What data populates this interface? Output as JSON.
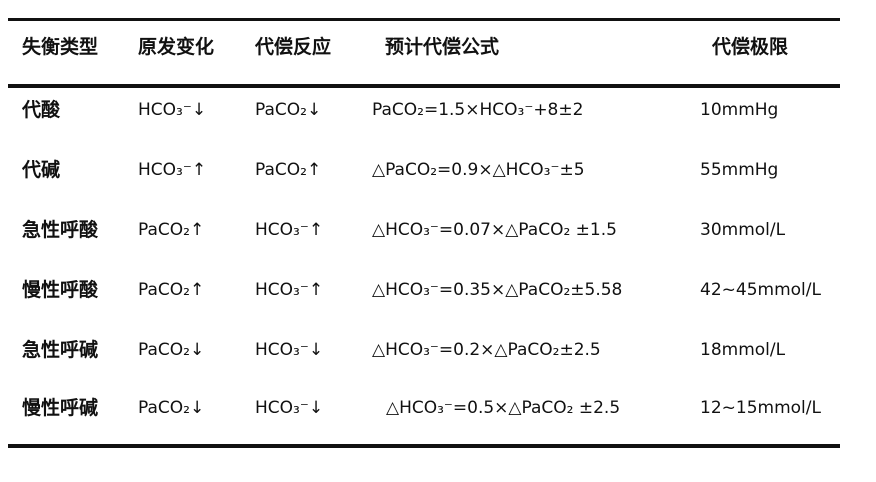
{
  "table": {
    "headers": [
      "失衡类型",
      "原发变化",
      "代偿反应",
      "预计代偿公式",
      "代偿极限"
    ],
    "rows": [
      [
        "代酸",
        "HCO₃⁻↓",
        "PaCO₂↓",
        "PaCO₂=1.5×HCO₃⁻+8±2",
        "10mmHg"
      ],
      [
        "代碱",
        "HCO₃⁻↑",
        "PaCO₂↑",
        "△PaCO₂=0.9×△HCO₃⁻±5",
        "55mmHg"
      ],
      [
        "急性呼酸",
        "PaCO₂↑",
        "HCO₃⁻↑",
        "△HCO₃⁻=0.07×△PaCO₂ ±1.5",
        "30mmol/L"
      ],
      [
        "慢性呼酸",
        "PaCO₂↑",
        "HCO₃⁻↑",
        "△HCO₃⁻=0.35×△PaCO₂±5.58",
        "42~45mmol/L"
      ],
      [
        "急性呼碱",
        "PaCO₂↓",
        "HCO₃⁻↓",
        "△HCO₃⁻=0.2×△PaCO₂±2.5",
        "18mmol/L"
      ],
      [
        "慢性呼碱",
        "PaCO₂↓",
        "HCO₃⁻↓",
        "△HCO₃⁻=0.5×△PaCO₂ ±2.5",
        "12~15mmol/L"
      ]
    ]
  }
}
